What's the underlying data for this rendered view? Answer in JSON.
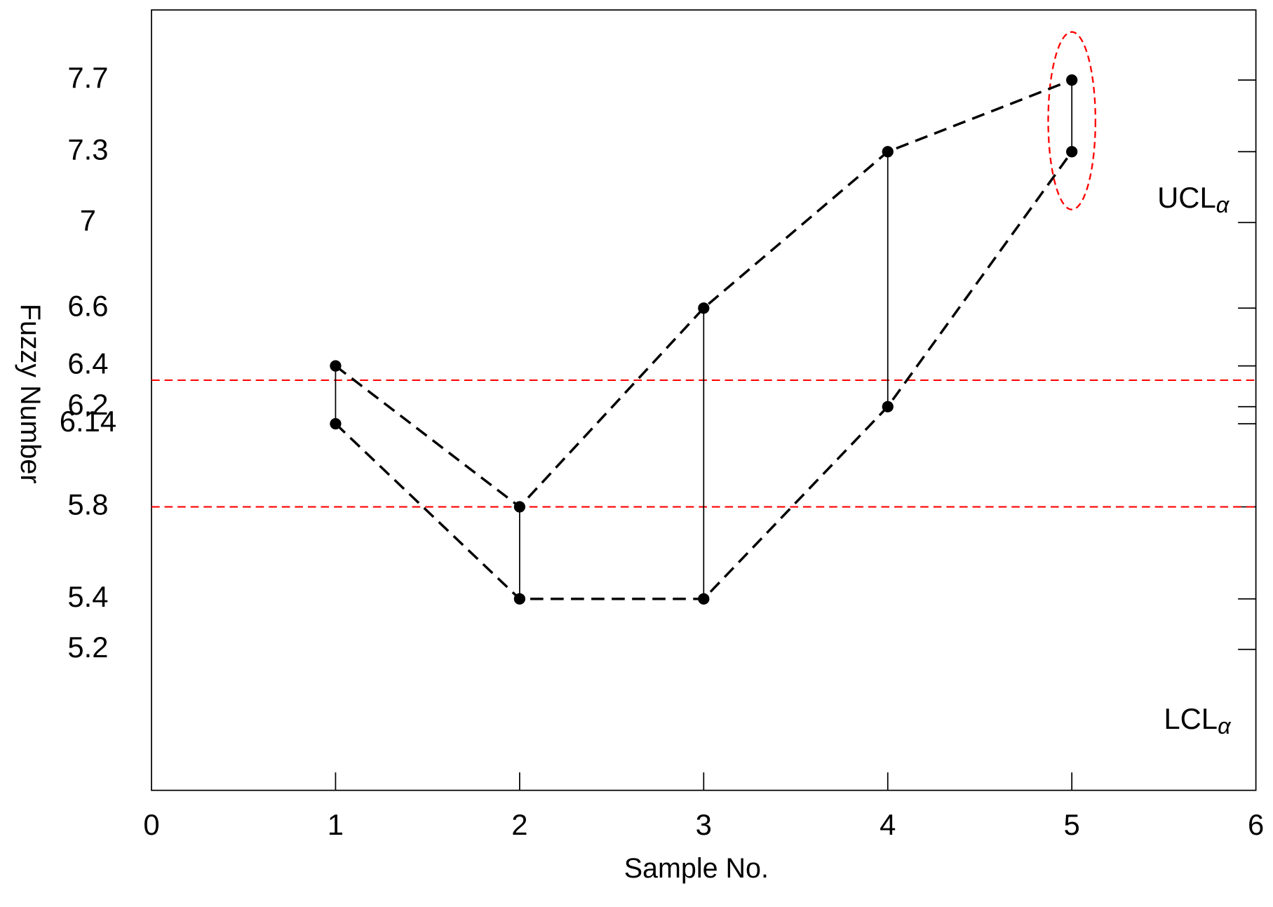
{
  "chart_data": {
    "type": "line",
    "x_label": "Sample No.",
    "y_label": "Fuzzy Number",
    "x": [
      1,
      2,
      3,
      4,
      5
    ],
    "series": [
      {
        "color": "#000000",
        "values": [
          6.4,
          5.8,
          6.6,
          7.3,
          7.7
        ]
      },
      {
        "color": "#000000",
        "values": [
          6.14,
          5.4,
          5.4,
          6.2,
          7.3
        ]
      }
    ],
    "xlim": [
      0,
      6
    ],
    "xticks": [
      0,
      1,
      2,
      3,
      4,
      5,
      6
    ],
    "ylim": [
      4.64,
      8.09
    ],
    "yticks": [
      5.2,
      5.4,
      5.8,
      6.14,
      6.2,
      6.4,
      6.6,
      7,
      7.3,
      7.7
    ],
    "reference_lines": [
      {
        "value": 6.33,
        "color": "#ff0000"
      },
      {
        "value": 5.8,
        "color": "#ff0000"
      }
    ],
    "annotations": [
      {
        "text": "UCL",
        "subscript": "α"
      },
      {
        "text": "LCL",
        "subscript": "α"
      }
    ]
  }
}
